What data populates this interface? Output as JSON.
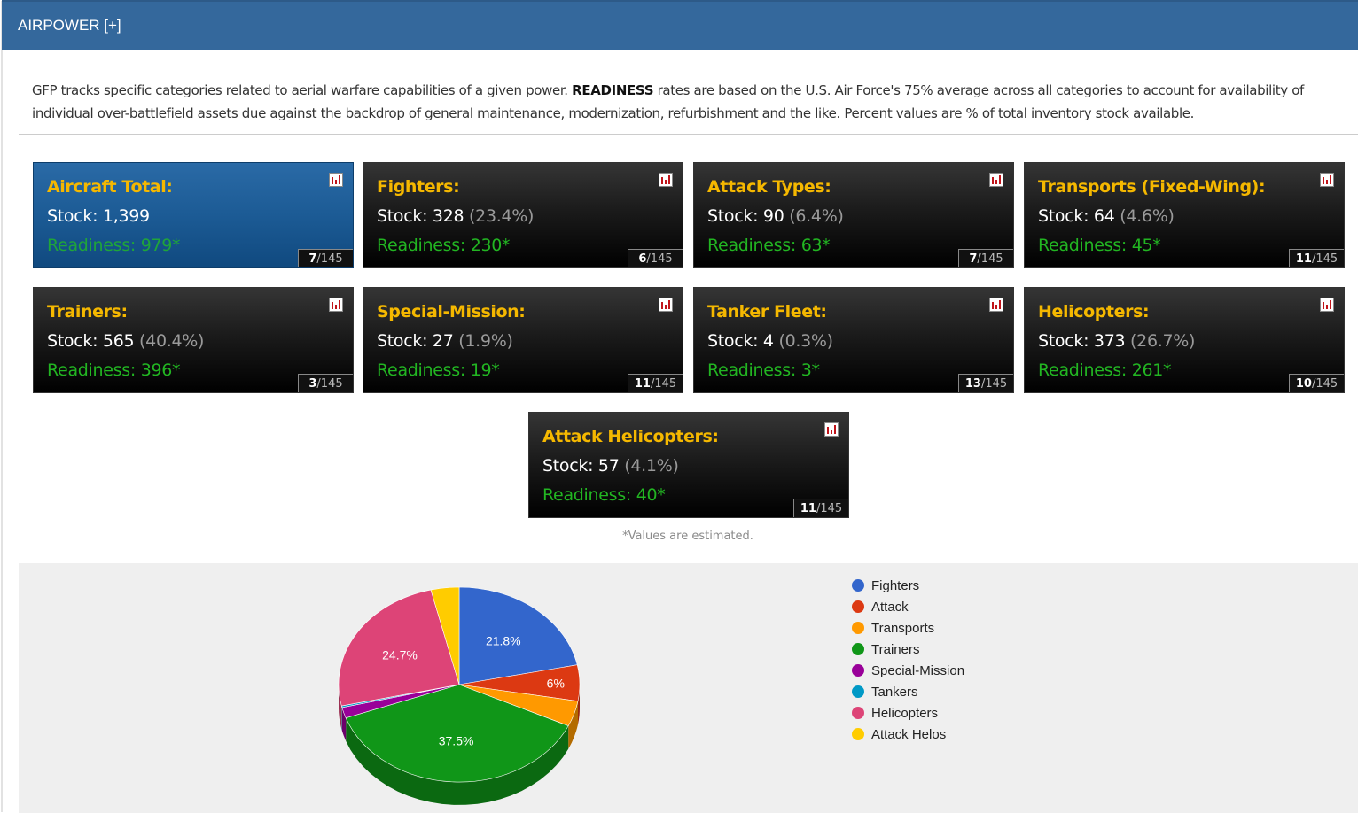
{
  "header": {
    "title": "AIRPOWER [+]"
  },
  "intro": {
    "part1": "GFP tracks specific categories related to aerial warfare capabilities of a given power. ",
    "bold": "READINESS",
    "part2": " rates are based on the U.S. Air Force's 75% average across all categories to account for availability of individual over-battlefield assets due against the backdrop of general maintenance, modernization, refurbishment and the like. Percent values are % of total inventory stock available."
  },
  "cards": [
    {
      "title": "Aircraft Total:",
      "stock_label": "Stock: 1,399",
      "pct": "",
      "readiness": "Readiness: 979*",
      "rank": "7",
      "rank_of": "/145",
      "icon": "bar-chart-icon"
    },
    {
      "title": "Fighters:",
      "stock_label": "Stock: 328",
      "pct": "(23.4%)",
      "readiness": "Readiness: 230*",
      "rank": "6",
      "rank_of": "/145",
      "icon": "bar-chart-icon"
    },
    {
      "title": "Attack Types:",
      "stock_label": "Stock: 90",
      "pct": "(6.4%)",
      "readiness": "Readiness: 63*",
      "rank": "7",
      "rank_of": "/145",
      "icon": "bar-chart-icon"
    },
    {
      "title": "Transports (Fixed-Wing):",
      "stock_label": "Stock: 64",
      "pct": "(4.6%)",
      "readiness": "Readiness: 45*",
      "rank": "11",
      "rank_of": "/145",
      "icon": "bar-chart-icon"
    },
    {
      "title": "Trainers:",
      "stock_label": "Stock: 565",
      "pct": "(40.4%)",
      "readiness": "Readiness: 396*",
      "rank": "3",
      "rank_of": "/145",
      "icon": "bar-chart-icon"
    },
    {
      "title": "Special-Mission:",
      "stock_label": "Stock: 27",
      "pct": "(1.9%)",
      "readiness": "Readiness: 19*",
      "rank": "11",
      "rank_of": "/145",
      "icon": "bar-chart-icon"
    },
    {
      "title": "Tanker Fleet:",
      "stock_label": "Stock: 4",
      "pct": "(0.3%)",
      "readiness": "Readiness: 3*",
      "rank": "13",
      "rank_of": "/145",
      "icon": "bar-chart-icon"
    },
    {
      "title": "Helicopters:",
      "stock_label": "Stock: 373",
      "pct": "(26.7%)",
      "readiness": "Readiness: 261*",
      "rank": "10",
      "rank_of": "/145",
      "icon": "bar-chart-icon"
    },
    {
      "title": "Attack Helicopters:",
      "stock_label": "Stock: 57",
      "pct": "(4.1%)",
      "readiness": "Readiness: 40*",
      "rank": "11",
      "rank_of": "/145",
      "icon": "bar-chart-icon"
    }
  ],
  "note": "*Values are estimated.",
  "colors": {
    "header": "#34689c",
    "title": "#f5b800",
    "readiness": "#22b522",
    "fighters": "#3366cc",
    "attack": "#dc3912",
    "transports": "#ff9900",
    "trainers": "#109618",
    "special": "#990099",
    "tankers": "#0099c6",
    "helicopters": "#dd4477",
    "attack_helos": "#ffcc00"
  },
  "chart_data": {
    "type": "pie",
    "categories": [
      "Fighters",
      "Attack",
      "Transports",
      "Trainers",
      "Special-Mission",
      "Tankers",
      "Helicopters",
      "Attack Helos"
    ],
    "values": [
      328,
      90,
      64,
      565,
      27,
      4,
      373,
      57
    ],
    "data_labels": [
      "21.8%",
      "6%",
      "",
      "37.5%",
      "",
      "",
      "24.7%",
      ""
    ],
    "colors": [
      "#3366cc",
      "#dc3912",
      "#ff9900",
      "#109618",
      "#990099",
      "#0099c6",
      "#dd4477",
      "#ffcc00"
    ],
    "style": "3d",
    "legend_position": "right"
  }
}
